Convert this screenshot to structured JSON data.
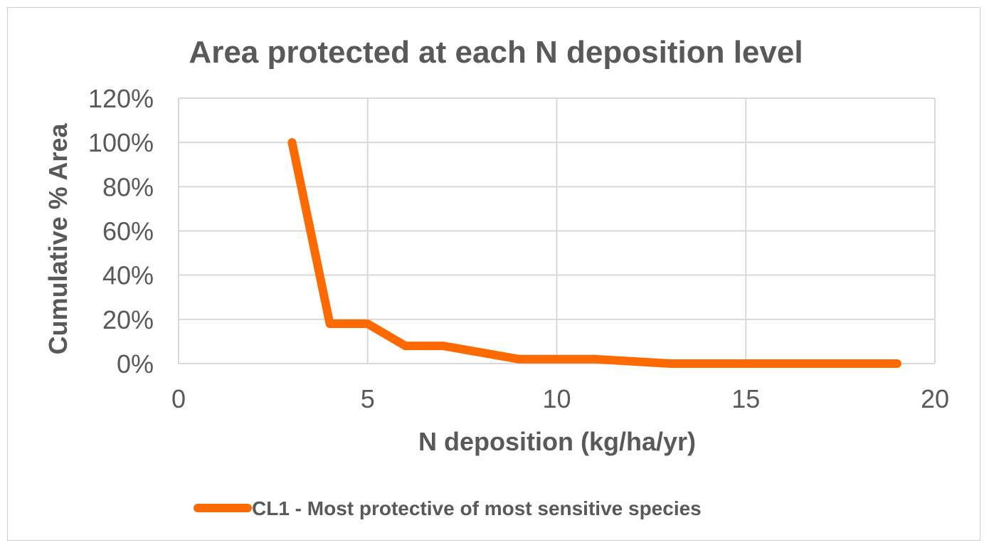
{
  "chart_data": {
    "type": "line",
    "title": "Area protected at each N deposition level",
    "xlabel": "N deposition (kg/ha/yr)",
    "ylabel": "Cumulative % Area",
    "xlim": [
      0,
      20
    ],
    "ylim": [
      0,
      120
    ],
    "x_ticks": [
      "0",
      "5",
      "10",
      "15",
      "20"
    ],
    "y_ticks": [
      "0%",
      "20%",
      "40%",
      "60%",
      "80%",
      "100%",
      "120%"
    ],
    "grid": true,
    "legend_position": "bottom",
    "series": [
      {
        "name": "CL1 - Most protective of most sensitive species",
        "color": "#ff6a00",
        "x": [
          3,
          4,
          5,
          6,
          7,
          8,
          9,
          10,
          11,
          12,
          13,
          14,
          15,
          16,
          17,
          18,
          19
        ],
        "y": [
          100,
          18,
          18,
          8,
          8,
          5,
          2,
          2,
          2,
          1,
          0,
          0,
          0,
          0,
          0,
          0,
          0
        ]
      }
    ]
  }
}
